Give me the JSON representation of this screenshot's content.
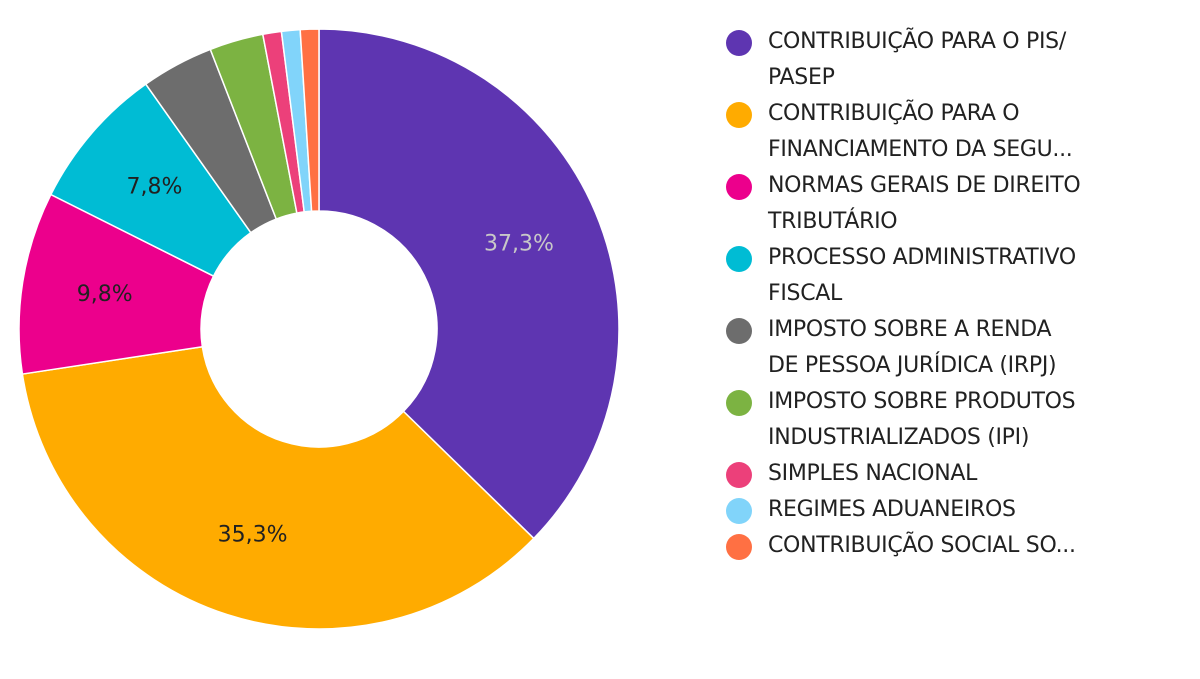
{
  "chart_data": {
    "type": "pie",
    "donut": true,
    "legend_position": "right",
    "series": [
      {
        "name": "CONTRIBUIÇÃO PARA O PIS/\nPASEP",
        "value": 37.3,
        "color": "#5e35b1",
        "label": "37,3%",
        "label_color": "#c8c8c8"
      },
      {
        "name": "CONTRIBUIÇÃO PARA O\nFINANCIAMENTO DA SEGU...",
        "value": 35.3,
        "color": "#ffab00",
        "label": "35,3%",
        "label_color": "#212121"
      },
      {
        "name": "NORMAS GERAIS DE DIREITO\nTRIBUTÁRIO",
        "value": 9.8,
        "color": "#ec008c",
        "label": "9,8%",
        "label_color": "#212121"
      },
      {
        "name": "PROCESSO ADMINISTRATIVO\nFISCAL",
        "value": 7.8,
        "color": "#00bcd4",
        "label": "7,8%",
        "label_color": "#212121"
      },
      {
        "name": "IMPOSTO SOBRE A RENDA\nDE PESSOA JURÍDICA (IRPJ)",
        "value": 3.9,
        "color": "#6d6d6d",
        "label": "",
        "label_color": "#212121"
      },
      {
        "name": "IMPOSTO SOBRE PRODUTOS\nINDUSTRIALIZADOS (IPI)",
        "value": 2.9,
        "color": "#7cb342",
        "label": "",
        "label_color": "#212121"
      },
      {
        "name": "SIMPLES NACIONAL",
        "value": 1.0,
        "color": "#ec407a",
        "label": "",
        "label_color": "#212121"
      },
      {
        "name": "REGIMES ADUANEIROS",
        "value": 1.0,
        "color": "#81d4fa",
        "label": "",
        "label_color": "#212121"
      },
      {
        "name": "CONTRIBUIÇÃO SOCIAL SO...",
        "value": 1.0,
        "color": "#ff7043",
        "label": "",
        "label_color": "#212121"
      }
    ]
  }
}
